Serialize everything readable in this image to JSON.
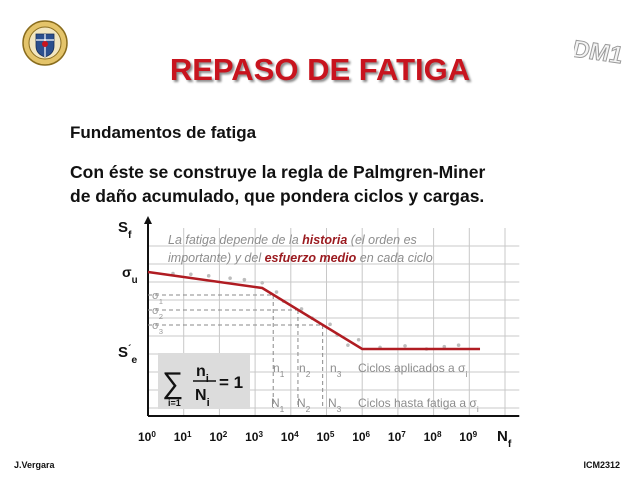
{
  "slide": {
    "title": "REPASO DE FATIGA",
    "subtitle": "Fundamentos de fatiga",
    "body_line1": "Con éste se construye la regla de Palmgren-Miner",
    "body_line2": "de daño acumulado, que pondera ciclos y cargas.",
    "brand_mark": "DM1",
    "footer_left": "J.Vergara",
    "footer_right": "ICM2312"
  },
  "chart_data": {
    "type": "line",
    "y_axis_label": {
      "base": "S",
      "sub": "f"
    },
    "x_axis_label": {
      "base": "N",
      "sub": "f"
    },
    "x_ticks": [
      {
        "base": "10",
        "exp": "0"
      },
      {
        "base": "10",
        "exp": "1"
      },
      {
        "base": "10",
        "exp": "2"
      },
      {
        "base": "10",
        "exp": "3"
      },
      {
        "base": "10",
        "exp": "4"
      },
      {
        "base": "10",
        "exp": "5"
      },
      {
        "base": "10",
        "exp": "6"
      },
      {
        "base": "10",
        "exp": "7"
      },
      {
        "base": "10",
        "exp": "8"
      },
      {
        "base": "10",
        "exp": "9"
      }
    ],
    "y_labels": {
      "su": {
        "base": "σ",
        "sub": "u"
      },
      "se": {
        "base": "S",
        "sub": "e",
        "prime": "´"
      }
    },
    "stress_levels": [
      {
        "base": "σ",
        "sub": "1"
      },
      {
        "base": "σ",
        "sub": "2"
      },
      {
        "base": "σ",
        "sub": "3"
      }
    ],
    "annotation_line1": [
      {
        "text": "La fatiga depende de la ",
        "highlight": false
      },
      {
        "text": "historia",
        "highlight": true
      },
      {
        "text": " (el orden es",
        "highlight": false
      }
    ],
    "annotation_line2": [
      {
        "text": "importante) y del ",
        "highlight": false
      },
      {
        "text": "esfuerzo medio",
        "highlight": true
      },
      {
        "text": " en cada ciclo",
        "highlight": false
      }
    ],
    "applied_cycles": [
      {
        "base": "n",
        "sub": "1"
      },
      {
        "base": "n",
        "sub": "2"
      },
      {
        "base": "n",
        "sub": "3"
      }
    ],
    "life_cycles": [
      {
        "base": "N",
        "sub": "1"
      },
      {
        "base": "N",
        "sub": "2"
      },
      {
        "base": "N",
        "sub": "3"
      }
    ],
    "applied_label": {
      "text": "Ciclos aplicados a σ",
      "sub": "i"
    },
    "life_label": {
      "text": "Ciclos hasta fatiga a σ",
      "sub": "i"
    },
    "formula": {
      "sigma": "∑",
      "upper_lower": "i=1",
      "numerator": {
        "base": "n",
        "sub": "i"
      },
      "denominator": {
        "base": "N",
        "sub": "i"
      },
      "equals": "= 1"
    },
    "curve_logN": [
      0,
      3,
      6,
      9
    ],
    "curve_rel_stress": [
      1.0,
      0.88,
      0.0,
      0.0
    ],
    "colors": {
      "curve": "#b01c22",
      "highlight_text": "#9b1b20",
      "annotation_text": "#8d8d8d",
      "grid": "#c8c8c8",
      "formula_box": "#dcdcdc",
      "title": "#c8141e"
    }
  }
}
